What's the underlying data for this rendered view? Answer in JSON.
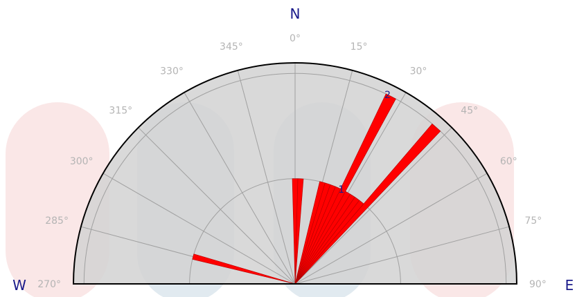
{
  "compass": {
    "north": "N",
    "west": "W",
    "east": "E"
  },
  "chart_data": {
    "type": "polar-bar",
    "title": "",
    "angle_range_deg": [
      -90,
      90
    ],
    "sector_width_deg": 3,
    "radial_max": 2.1,
    "ring_values": [
      1,
      2
    ],
    "ring_labels": [
      "1",
      "2"
    ],
    "angle_ticks": [
      {
        "deg": -90,
        "label": "270°"
      },
      {
        "deg": -75,
        "label": "285°"
      },
      {
        "deg": -60,
        "label": "300°"
      },
      {
        "deg": -45,
        "label": "315°"
      },
      {
        "deg": -30,
        "label": "330°"
      },
      {
        "deg": -15,
        "label": "345°"
      },
      {
        "deg": 0,
        "label": "0°"
      },
      {
        "deg": 15,
        "label": "15°"
      },
      {
        "deg": 30,
        "label": "30°"
      },
      {
        "deg": 45,
        "label": "45°"
      },
      {
        "deg": 60,
        "label": "60°"
      },
      {
        "deg": 75,
        "label": "75°"
      },
      {
        "deg": 90,
        "label": "90°"
      }
    ],
    "bars": [
      {
        "direction_deg": 285,
        "value": 1.0
      },
      {
        "direction_deg": 0,
        "value": 1.0
      },
      {
        "direction_deg": 3,
        "value": 1.0
      },
      {
        "direction_deg": 15,
        "value": 1.0
      },
      {
        "direction_deg": 18,
        "value": 1.0
      },
      {
        "direction_deg": 21,
        "value": 1.0
      },
      {
        "direction_deg": 24,
        "value": 1.0
      },
      {
        "direction_deg": 27,
        "value": 2.0
      },
      {
        "direction_deg": 30,
        "value": 1.0
      },
      {
        "direction_deg": 33,
        "value": 1.0
      },
      {
        "direction_deg": 36,
        "value": 1.0
      },
      {
        "direction_deg": 39,
        "value": 1.0
      },
      {
        "direction_deg": 42,
        "value": 2.0
      }
    ],
    "colors": {
      "bar": "#ff0000",
      "bar_edge": "#b40000",
      "plot_background": "#d2d2d2",
      "outline": "#000000"
    }
  }
}
